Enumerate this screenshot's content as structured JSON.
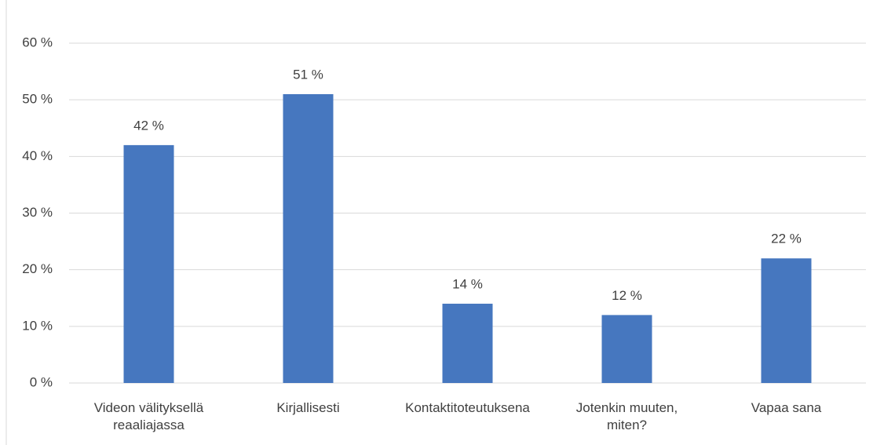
{
  "chart_data": {
    "type": "bar",
    "categories": [
      "Videon välityksellä reaaliajassa",
      "Kirjallisesti",
      "Kontaktitoteutuksena",
      "Jotenkin muuten, miten?",
      "Vapaa sana"
    ],
    "values": [
      42,
      51,
      14,
      12,
      22
    ],
    "value_labels": [
      "42 %",
      "51 %",
      "14 %",
      "12 %",
      "22 %"
    ],
    "color": "#4677bf",
    "ylim": [
      0,
      60
    ],
    "yticks": [
      {
        "value": 0,
        "label": "0 %"
      },
      {
        "value": 10,
        "label": "10 %"
      },
      {
        "value": 20,
        "label": "20 %"
      },
      {
        "value": 30,
        "label": "30 %"
      },
      {
        "value": 40,
        "label": "40 %"
      },
      {
        "value": 50,
        "label": "50 %"
      },
      {
        "value": 60,
        "label": "60 %"
      }
    ],
    "grid": true
  }
}
